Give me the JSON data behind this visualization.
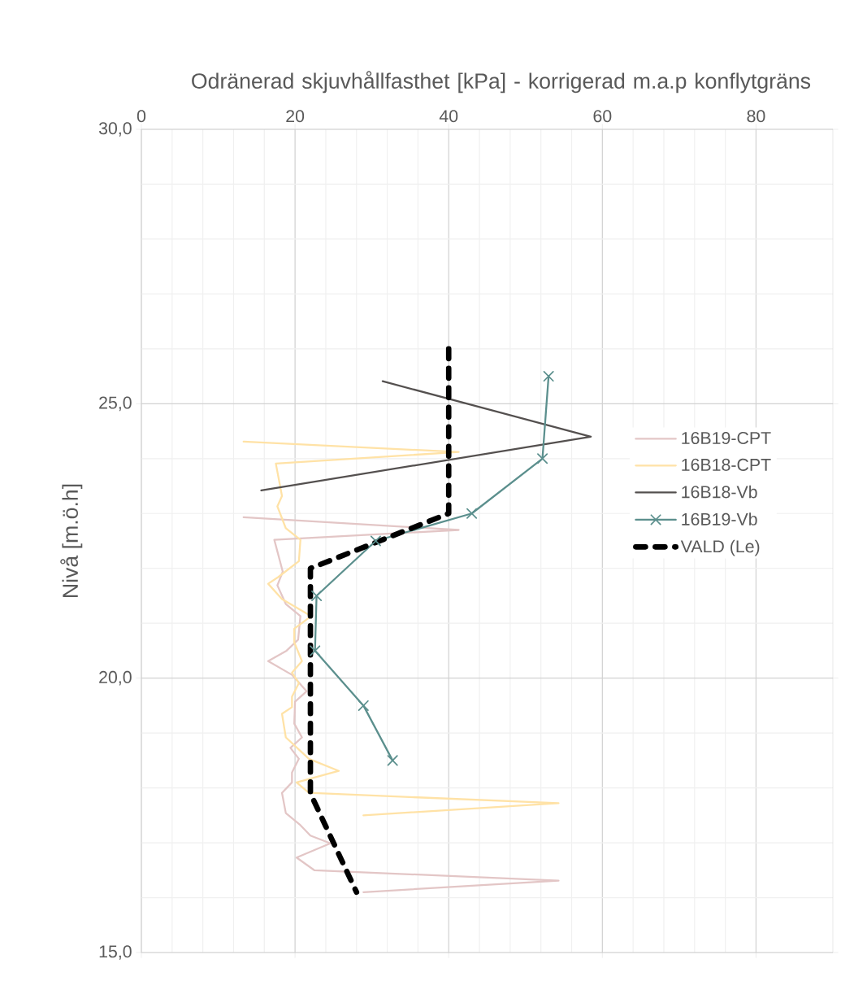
{
  "chart_data": {
    "type": "line",
    "title": "Odränerad skjuvhållfasthet [kPa] - korrigerad m.a.p konflytgräns",
    "ylabel": "Nivå [m.ö.h]",
    "xlim": [
      0,
      90
    ],
    "ylim": [
      15,
      30
    ],
    "xticks": [
      0,
      20,
      40,
      60,
      80
    ],
    "yticks": [
      {
        "value": 15,
        "label": "15,0"
      },
      {
        "value": 20,
        "label": "20,0"
      },
      {
        "value": 25,
        "label": "25,0"
      },
      {
        "value": 30,
        "label": "30,0"
      }
    ],
    "grid": true,
    "legend": "right",
    "series": [
      {
        "name": "16B19-CPT",
        "color": "#e3c6c6",
        "x": [
          13.3,
          41.3,
          17.3,
          18.4,
          17.7,
          18.8,
          20.7,
          20.4,
          18.9,
          16.5,
          19.6,
          21.5,
          20.0,
          19.9,
          20.9,
          19.4,
          20.5,
          19.6,
          19.6,
          18.3,
          18.8,
          20.7,
          22.0,
          24.6,
          20.2,
          22.5,
          54.3,
          28.9
        ],
        "values": [
          22.93,
          22.7,
          22.52,
          21.94,
          21.69,
          21.35,
          21.13,
          20.7,
          20.5,
          20.31,
          20.06,
          19.76,
          19.57,
          19.17,
          18.92,
          18.73,
          18.53,
          18.28,
          18.1,
          17.91,
          17.54,
          17.32,
          17.13,
          16.99,
          16.73,
          16.5,
          16.31,
          16.1
        ]
      },
      {
        "name": "16B18-CPT",
        "color": "#ffe2a6",
        "x": [
          13.3,
          41.3,
          17.5,
          18.3,
          17.7,
          18.8,
          20.7,
          20.5,
          17.8,
          16.5,
          18.3,
          22.1,
          19.9,
          19.9,
          20.9,
          19.6,
          20.5,
          19.6,
          19.6,
          18.3,
          18.8,
          21.8,
          25.7,
          20.2,
          21.8,
          54.3,
          28.9
        ],
        "values": [
          24.31,
          24.12,
          23.91,
          23.32,
          23.13,
          22.73,
          22.52,
          22.13,
          21.84,
          21.72,
          21.44,
          21.13,
          20.9,
          20.65,
          20.31,
          20.1,
          19.91,
          19.66,
          19.47,
          19.35,
          18.92,
          18.53,
          18.31,
          18.1,
          17.91,
          17.72,
          17.5
        ]
      },
      {
        "name": "16B18-Vb",
        "color": "#54504f",
        "x": [
          31.4,
          58.5,
          15.6
        ],
        "values": [
          25.41,
          24.4,
          23.42
        ]
      },
      {
        "name": "16B19-Vb",
        "color": "#5b8f8d",
        "marker": "cross",
        "x": [
          53.0,
          52.2,
          43.0,
          30.5,
          22.8,
          22.6,
          28.9,
          32.7
        ],
        "values": [
          25.5,
          24.0,
          23.0,
          22.5,
          21.5,
          20.5,
          19.5,
          18.5
        ]
      },
      {
        "name": "VALD (Le)",
        "color": "#000000",
        "line_style": "dashed",
        "x": [
          40,
          40,
          22,
          22,
          28
        ],
        "values": [
          26.0,
          23.0,
          22.0,
          17.9,
          16.1
        ]
      }
    ]
  }
}
